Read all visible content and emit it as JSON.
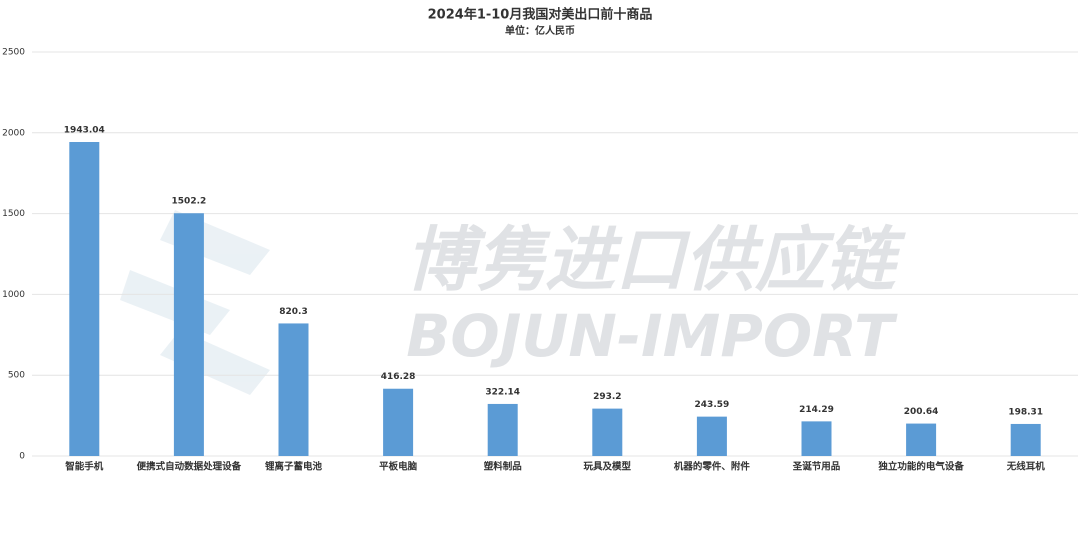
{
  "chart_data": {
    "type": "bar",
    "title": "2024年1-10月我国对美出口前十商品",
    "subtitle": "单位：亿人民币",
    "watermark": [
      "博隽进口供应链",
      "BOJUN-IMPORT"
    ],
    "categories": [
      "智能手机",
      "便携式自动数据处理设备",
      "锂离子蓄电池",
      "平板电脑",
      "塑料制品",
      "玩具及模型",
      "机器的零件、附件",
      "圣诞节用品",
      "独立功能的电气设备",
      "无线耳机"
    ],
    "values": [
      1943.04,
      1502.2,
      820.3,
      416.28,
      322.14,
      293.2,
      243.59,
      214.29,
      200.64,
      198.31
    ],
    "color": "#5b9bd5",
    "ylim": [
      0,
      2500
    ],
    "yticks": [
      0,
      500,
      1000,
      1500,
      2000,
      2500
    ],
    "grid": true
  }
}
